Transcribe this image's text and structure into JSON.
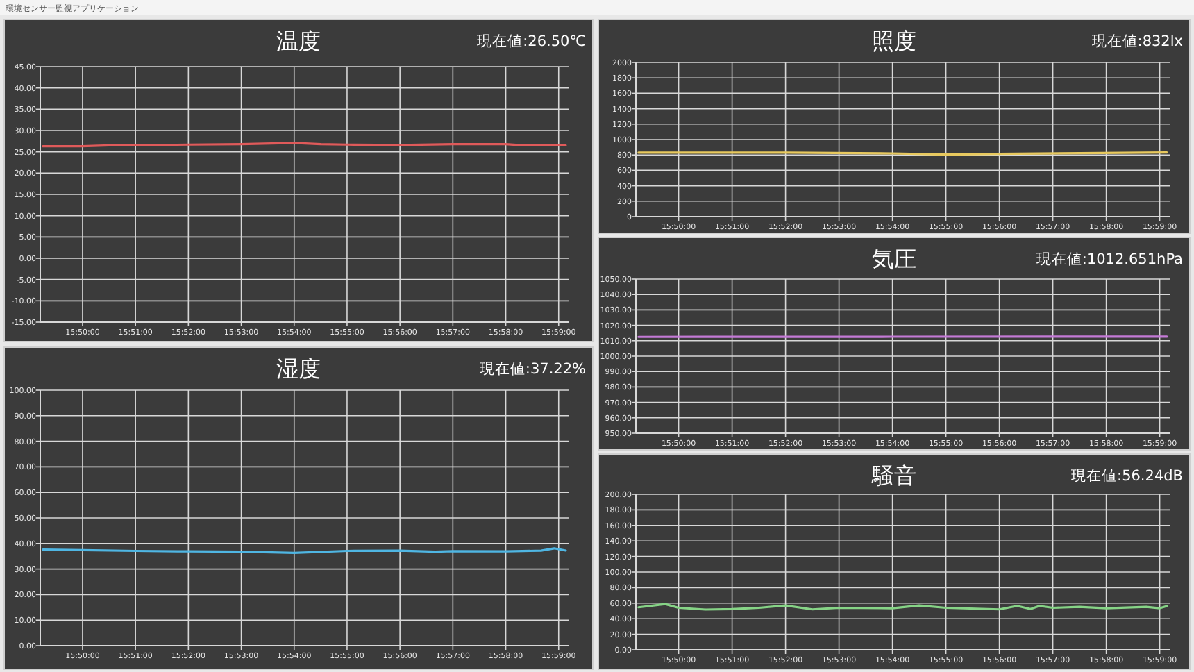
{
  "chart_data": [
    {
      "type": "other",
      "title": "環境センサー監視アプリケーション"
    },
    {
      "type": "line",
      "title": "温度",
      "annotations": [
        "現在値:26.50℃"
      ],
      "grid": true,
      "x": [
        15.820833,
        15.833333,
        15.841667,
        15.85,
        15.866667,
        15.883333,
        15.9,
        15.908333,
        15.916667,
        15.933333,
        15.95,
        15.966667,
        15.972222,
        15.985556
      ],
      "series": [
        {
          "color": "#e05a5a",
          "values": [
            26.3,
            26.3,
            26.5,
            26.5,
            26.7,
            26.8,
            27.1,
            26.8,
            26.7,
            26.6,
            26.8,
            26.8,
            26.5,
            26.5
          ]
        }
      ],
      "xlim": [
        15.82,
        15.986667
      ],
      "xticks": [
        {
          "value": 15.833333,
          "label": "15:50:00"
        },
        {
          "value": 15.85,
          "label": "15:51:00"
        },
        {
          "value": 15.866667,
          "label": "15:52:00"
        },
        {
          "value": 15.883333,
          "label": "15:53:00"
        },
        {
          "value": 15.9,
          "label": "15:54:00"
        },
        {
          "value": 15.916667,
          "label": "15:55:00"
        },
        {
          "value": 15.933333,
          "label": "15:56:00"
        },
        {
          "value": 15.95,
          "label": "15:57:00"
        },
        {
          "value": 15.966667,
          "label": "15:58:00"
        },
        {
          "value": 15.983333,
          "label": "15:59:00"
        }
      ],
      "ylim": [
        -15,
        45
      ],
      "yticks": [
        {
          "value": -15,
          "label": "-15.00"
        },
        {
          "value": -10,
          "label": "-10.00"
        },
        {
          "value": -5,
          "label": "-5.00"
        },
        {
          "value": 0,
          "label": "0.00"
        },
        {
          "value": 5,
          "label": "5.00"
        },
        {
          "value": 10,
          "label": "10.00"
        },
        {
          "value": 15,
          "label": "15.00"
        },
        {
          "value": 20,
          "label": "20.00"
        },
        {
          "value": 25,
          "label": "25.00"
        },
        {
          "value": 30,
          "label": "30.00"
        },
        {
          "value": 35,
          "label": "35.00"
        },
        {
          "value": 40,
          "label": "40.00"
        },
        {
          "value": 45,
          "label": "45.00"
        }
      ]
    },
    {
      "type": "line",
      "title": "湿度",
      "annotations": [
        "現在値:37.22%"
      ],
      "grid": true,
      "x": [
        15.820833,
        15.833333,
        15.85,
        15.866667,
        15.883333,
        15.9,
        15.916667,
        15.933333,
        15.944444,
        15.95,
        15.966667,
        15.977778,
        15.981944,
        15.985556
      ],
      "series": [
        {
          "color": "#4fb6e3",
          "values": [
            37.6,
            37.4,
            37.1,
            36.9,
            36.8,
            36.3,
            37.1,
            37.2,
            36.8,
            37.0,
            36.9,
            37.2,
            38.1,
            37.22
          ]
        }
      ],
      "xlim": [
        15.82,
        15.986667
      ],
      "xticks": [
        {
          "value": 15.833333,
          "label": "15:50:00"
        },
        {
          "value": 15.85,
          "label": "15:51:00"
        },
        {
          "value": 15.866667,
          "label": "15:52:00"
        },
        {
          "value": 15.883333,
          "label": "15:53:00"
        },
        {
          "value": 15.9,
          "label": "15:54:00"
        },
        {
          "value": 15.916667,
          "label": "15:55:00"
        },
        {
          "value": 15.933333,
          "label": "15:56:00"
        },
        {
          "value": 15.95,
          "label": "15:57:00"
        },
        {
          "value": 15.966667,
          "label": "15:58:00"
        },
        {
          "value": 15.983333,
          "label": "15:59:00"
        }
      ],
      "ylim": [
        0,
        100
      ],
      "yticks": [
        {
          "value": 0,
          "label": "0.00"
        },
        {
          "value": 10,
          "label": "10.00"
        },
        {
          "value": 20,
          "label": "20.00"
        },
        {
          "value": 30,
          "label": "30.00"
        },
        {
          "value": 40,
          "label": "40.00"
        },
        {
          "value": 50,
          "label": "50.00"
        },
        {
          "value": 60,
          "label": "60.00"
        },
        {
          "value": 70,
          "label": "70.00"
        },
        {
          "value": 80,
          "label": "80.00"
        },
        {
          "value": 90,
          "label": "90.00"
        },
        {
          "value": 100,
          "label": "100.00"
        }
      ]
    },
    {
      "type": "line",
      "title": "照度",
      "annotations": [
        "現在値:832lx"
      ],
      "grid": true,
      "x": [
        15.820833,
        15.866667,
        15.9,
        15.916667,
        15.933333,
        15.985556
      ],
      "series": [
        {
          "color": "#e8c95e",
          "values": [
            830,
            830,
            820,
            805,
            815,
            832
          ]
        }
      ],
      "xlim": [
        15.82,
        15.986667
      ],
      "xticks": [
        {
          "value": 15.833333,
          "label": "15:50:00"
        },
        {
          "value": 15.85,
          "label": "15:51:00"
        },
        {
          "value": 15.866667,
          "label": "15:52:00"
        },
        {
          "value": 15.883333,
          "label": "15:53:00"
        },
        {
          "value": 15.9,
          "label": "15:54:00"
        },
        {
          "value": 15.916667,
          "label": "15:55:00"
        },
        {
          "value": 15.933333,
          "label": "15:56:00"
        },
        {
          "value": 15.95,
          "label": "15:57:00"
        },
        {
          "value": 15.966667,
          "label": "15:58:00"
        },
        {
          "value": 15.983333,
          "label": "15:59:00"
        }
      ],
      "ylim": [
        0,
        2000
      ],
      "yticks": [
        0,
        200,
        400,
        600,
        800,
        1000,
        1200,
        1400,
        1600,
        1800,
        2000
      ]
    },
    {
      "type": "line",
      "title": "気圧",
      "annotations": [
        "現在値:1012.651hPa"
      ],
      "grid": true,
      "x": [
        15.820833,
        15.9,
        15.985556
      ],
      "series": [
        {
          "color": "#c47ad6",
          "values": [
            1012.5,
            1012.6,
            1012.65
          ]
        }
      ],
      "xlim": [
        15.82,
        15.986667
      ],
      "xticks": [
        {
          "value": 15.833333,
          "label": "15:50:00"
        },
        {
          "value": 15.85,
          "label": "15:51:00"
        },
        {
          "value": 15.866667,
          "label": "15:52:00"
        },
        {
          "value": 15.883333,
          "label": "15:53:00"
        },
        {
          "value": 15.9,
          "label": "15:54:00"
        },
        {
          "value": 15.916667,
          "label": "15:55:00"
        },
        {
          "value": 15.933333,
          "label": "15:56:00"
        },
        {
          "value": 15.95,
          "label": "15:57:00"
        },
        {
          "value": 15.966667,
          "label": "15:58:00"
        },
        {
          "value": 15.983333,
          "label": "15:59:00"
        }
      ],
      "ylim": [
        950,
        1050
      ],
      "yticks": [
        {
          "value": 950,
          "label": "950.00"
        },
        {
          "value": 960,
          "label": "960.00"
        },
        {
          "value": 970,
          "label": "970.00"
        },
        {
          "value": 980,
          "label": "980.00"
        },
        {
          "value": 990,
          "label": "990.00"
        },
        {
          "value": 1000,
          "label": "1000.00"
        },
        {
          "value": 1010,
          "label": "1010.00"
        },
        {
          "value": 1020,
          "label": "1020.00"
        },
        {
          "value": 1030,
          "label": "1030.00"
        },
        {
          "value": 1040,
          "label": "1040.00"
        },
        {
          "value": 1050,
          "label": "1050.00"
        }
      ]
    },
    {
      "type": "line",
      "title": "騒音",
      "annotations": [
        "現在値:56.24dB"
      ],
      "grid": true,
      "x": [
        15.820833,
        15.829167,
        15.833333,
        15.841667,
        15.85,
        15.858333,
        15.866667,
        15.875,
        15.883333,
        15.9,
        15.908333,
        15.916667,
        15.933333,
        15.938889,
        15.943056,
        15.945833,
        15.95,
        15.958333,
        15.966667,
        15.979167,
        15.983333,
        15.985556
      ],
      "series": [
        {
          "color": "#86d486",
          "values": [
            54.7,
            58.8,
            54,
            51.8,
            52.4,
            54,
            57,
            52,
            54,
            53.5,
            57,
            54,
            52,
            56.5,
            52.5,
            56.5,
            54,
            55.3,
            53.5,
            55.3,
            53.5,
            56.24
          ]
        }
      ],
      "xlim": [
        15.82,
        15.986667
      ],
      "xticks": [
        {
          "value": 15.833333,
          "label": "15:50:00"
        },
        {
          "value": 15.85,
          "label": "15:51:00"
        },
        {
          "value": 15.866667,
          "label": "15:52:00"
        },
        {
          "value": 15.883333,
          "label": "15:53:00"
        },
        {
          "value": 15.9,
          "label": "15:54:00"
        },
        {
          "value": 15.916667,
          "label": "15:55:00"
        },
        {
          "value": 15.933333,
          "label": "15:56:00"
        },
        {
          "value": 15.95,
          "label": "15:57:00"
        },
        {
          "value": 15.966667,
          "label": "15:58:00"
        },
        {
          "value": 15.983333,
          "label": "15:59:00"
        }
      ],
      "ylim": [
        0,
        200
      ],
      "yticks": [
        {
          "value": 0,
          "label": "0.00"
        },
        {
          "value": 20,
          "label": "20.00"
        },
        {
          "value": 40,
          "label": "40.00"
        },
        {
          "value": 60,
          "label": "60.00"
        },
        {
          "value": 80,
          "label": "80.00"
        },
        {
          "value": 100,
          "label": "100.00"
        },
        {
          "value": 120,
          "label": "120.00"
        },
        {
          "value": 140,
          "label": "140.00"
        },
        {
          "value": 160,
          "label": "160.00"
        },
        {
          "value": 180,
          "label": "180.00"
        },
        {
          "value": 200,
          "label": "200.00"
        }
      ]
    }
  ]
}
